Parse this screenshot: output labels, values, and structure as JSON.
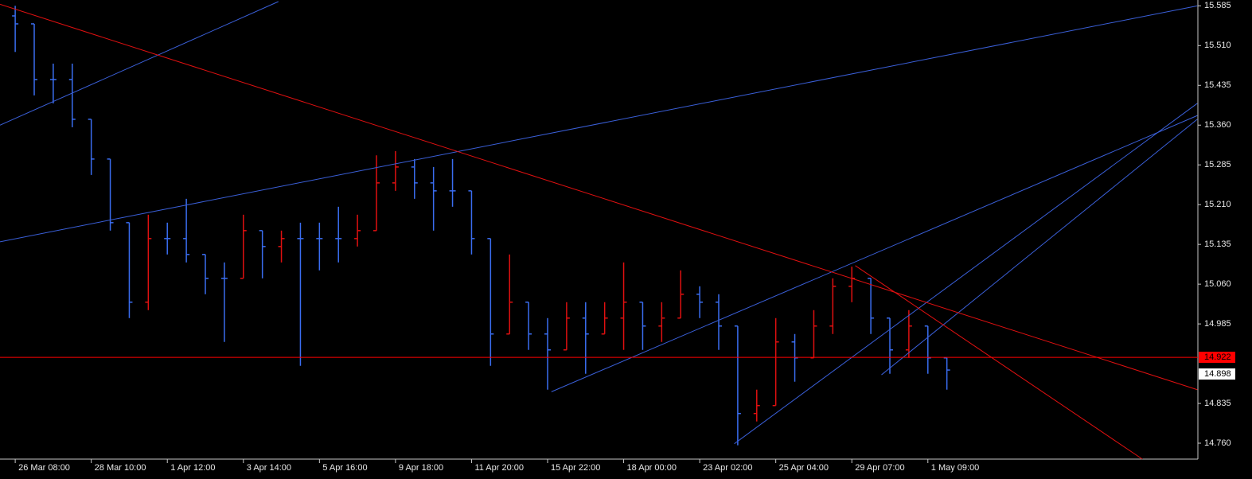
{
  "chart_data": {
    "type": "ohlc",
    "up_color": "#e01010",
    "down_color": "#3a6df0",
    "xlim": [
      -0.8,
      62.2
    ],
    "ylim": [
      14.73,
      15.596
    ],
    "xticks": [
      {
        "value": 0,
        "label": "26 Mar 08:00"
      },
      {
        "value": 4,
        "label": "28 Mar 10:00"
      },
      {
        "value": 8,
        "label": "1 Apr 12:00"
      },
      {
        "value": 12,
        "label": "3 Apr 14:00"
      },
      {
        "value": 16,
        "label": "5 Apr 16:00"
      },
      {
        "value": 20,
        "label": "9 Apr 18:00"
      },
      {
        "value": 24,
        "label": "11 Apr 20:00"
      },
      {
        "value": 28,
        "label": "15 Apr 22:00"
      },
      {
        "value": 32,
        "label": "18 Apr 00:00"
      },
      {
        "value": 36,
        "label": "23 Apr 02:00"
      },
      {
        "value": 40,
        "label": "25 Apr 04:00"
      },
      {
        "value": 44,
        "label": "29 Apr 07:00"
      },
      {
        "value": 48,
        "label": "1 May 09:00"
      }
    ],
    "yticks": [
      15.585,
      {
        "value": 15.51,
        "label": "15.510"
      },
      15.435,
      {
        "value": 15.36,
        "label": "15.360"
      },
      15.285,
      {
        "value": 15.21,
        "label": "15.210"
      },
      15.135,
      {
        "value": 15.06,
        "label": "15.060"
      },
      14.985,
      14.835,
      {
        "value": 14.76,
        "label": "14.760"
      }
    ],
    "open": [
      15.566,
      15.551,
      15.446,
      15.446,
      15.371,
      15.296,
      15.176,
      15.026,
      15.146,
      15.146,
      15.116,
      15.071,
      15.071,
      15.161,
      15.131,
      15.146,
      15.146,
      15.146,
      15.146,
      15.161,
      15.251,
      15.281,
      15.251,
      15.236,
      15.236,
      15.146,
      14.966,
      15.026,
      14.966,
      14.936,
      14.996,
      14.966,
      14.996,
      15.026,
      14.981,
      14.996,
      15.041,
      15.026,
      14.981,
      14.816,
      14.831,
      14.951,
      14.921,
      14.981,
      15.056,
      15.071,
      14.996,
      14.936,
      14.981,
      14.921
    ],
    "high": [
      15.585,
      15.551,
      15.476,
      15.476,
      15.371,
      15.296,
      15.176,
      15.191,
      15.176,
      15.221,
      15.116,
      15.101,
      15.191,
      15.161,
      15.161,
      15.176,
      15.176,
      15.206,
      15.191,
      15.303,
      15.311,
      15.296,
      15.281,
      15.296,
      15.236,
      15.146,
      15.116,
      15.026,
      14.996,
      15.026,
      15.026,
      15.026,
      15.101,
      15.026,
      15.026,
      15.086,
      15.056,
      15.041,
      14.981,
      14.861,
      14.996,
      14.966,
      15.011,
      15.071,
      15.093,
      15.071,
      14.996,
      15.011,
      14.981,
      14.921
    ],
    "low": [
      15.498,
      15.416,
      15.401,
      15.356,
      15.266,
      15.161,
      14.996,
      15.011,
      15.116,
      15.101,
      15.041,
      14.951,
      15.071,
      15.071,
      15.101,
      14.906,
      15.086,
      15.101,
      15.131,
      15.161,
      15.236,
      15.221,
      15.161,
      15.206,
      15.116,
      14.906,
      14.966,
      14.936,
      14.861,
      14.936,
      14.891,
      14.966,
      14.936,
      14.936,
      14.951,
      14.996,
      14.996,
      14.936,
      14.756,
      14.801,
      14.831,
      14.876,
      14.921,
      14.966,
      15.026,
      14.966,
      14.891,
      14.921,
      14.891,
      14.861
    ],
    "close": [
      15.551,
      15.446,
      15.446,
      15.371,
      15.296,
      15.176,
      15.026,
      15.146,
      15.146,
      15.116,
      15.071,
      15.071,
      15.161,
      15.131,
      15.146,
      15.146,
      15.146,
      15.146,
      15.161,
      15.251,
      15.281,
      15.251,
      15.236,
      15.236,
      15.146,
      14.966,
      15.026,
      14.966,
      14.936,
      14.996,
      14.966,
      14.996,
      15.026,
      14.981,
      14.996,
      15.041,
      15.026,
      14.981,
      14.816,
      14.831,
      14.951,
      14.921,
      14.981,
      15.056,
      15.071,
      14.996,
      14.936,
      14.981,
      14.921,
      14.898
    ],
    "trendlines": [
      {
        "color": "#3a5fd8",
        "x": [
          -0.8,
          13.84
        ],
        "y": [
          15.36,
          15.593
        ]
      },
      {
        "color": "#3a5fd8",
        "x": [
          -0.8,
          62.17
        ],
        "y": [
          15.14,
          15.585
        ]
      },
      {
        "color": "#3a5fd8",
        "x": [
          28.2,
          62.17
        ],
        "y": [
          14.857,
          15.378
        ]
      },
      {
        "color": "#3a5fd8",
        "x": [
          37.82,
          62.17
        ],
        "y": [
          14.759,
          15.401
        ]
      },
      {
        "color": "#3a5fd8",
        "x": [
          45.56,
          62.17
        ],
        "y": [
          14.889,
          15.371
        ]
      },
      {
        "color": "#e01010",
        "x": [
          -0.8,
          62.17
        ],
        "y": [
          15.588,
          14.861
        ]
      },
      {
        "color": "#e01010",
        "x": [
          44.18,
          59.28
        ],
        "y": [
          15.095,
          14.73
        ]
      }
    ],
    "price_line": 14.922,
    "price_line_color": "#ff0000",
    "last_price": 14.898
  }
}
